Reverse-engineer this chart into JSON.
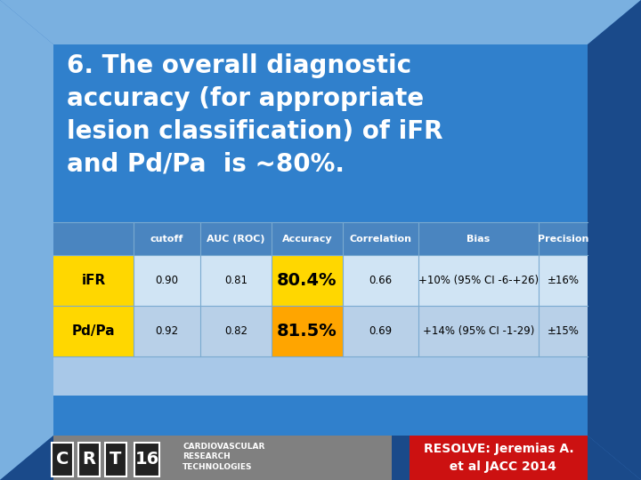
{
  "title_text": "6. The overall diagnostic\naccuracy (for appropriate\nlesion classification) of iFR\nand Pd/Pa  is ~80%.",
  "bg_outer": "#3a7bc8",
  "bg_3d_light": "#7ab0e0",
  "bg_3d_dark": "#1a4a8a",
  "bg_inner_blue": "#3080cc",
  "table_outer_bg": "#a8c8e8",
  "table_header_bg": "#4a85c0",
  "table_row1_bg": "#d0e4f4",
  "table_row2_bg": "#b8d0e8",
  "yellow_cell": "#FFD700",
  "orange_cell": "#FFA500",
  "col_headers": [
    "cutoff",
    "AUC (ROC)",
    "Accuracy",
    "Correlation",
    "Bias",
    "Precision"
  ],
  "row1_label": "iFR",
  "row2_label": "Pd/Pa",
  "row1_values": [
    "0.90",
    "0.81",
    "80.4%",
    "0.66",
    "+10% ₕ95% CI -6-+26ₖ",
    "±16%"
  ],
  "row2_values": [
    "0.92",
    "0.82",
    "81.5%",
    "0.69",
    "+14% ₕ95% CI -1-29ₖ",
    "±15%"
  ],
  "row1_bias": "+10% (95% CI -6-+26)",
  "row2_bias": "+14% (95% CI -1-29)",
  "footer_left_bg": "#808080",
  "footer_right_bg": "#cc1111",
  "resolve_text": "RESOLVE: Jeremias A.\n  et al JACC 2014"
}
